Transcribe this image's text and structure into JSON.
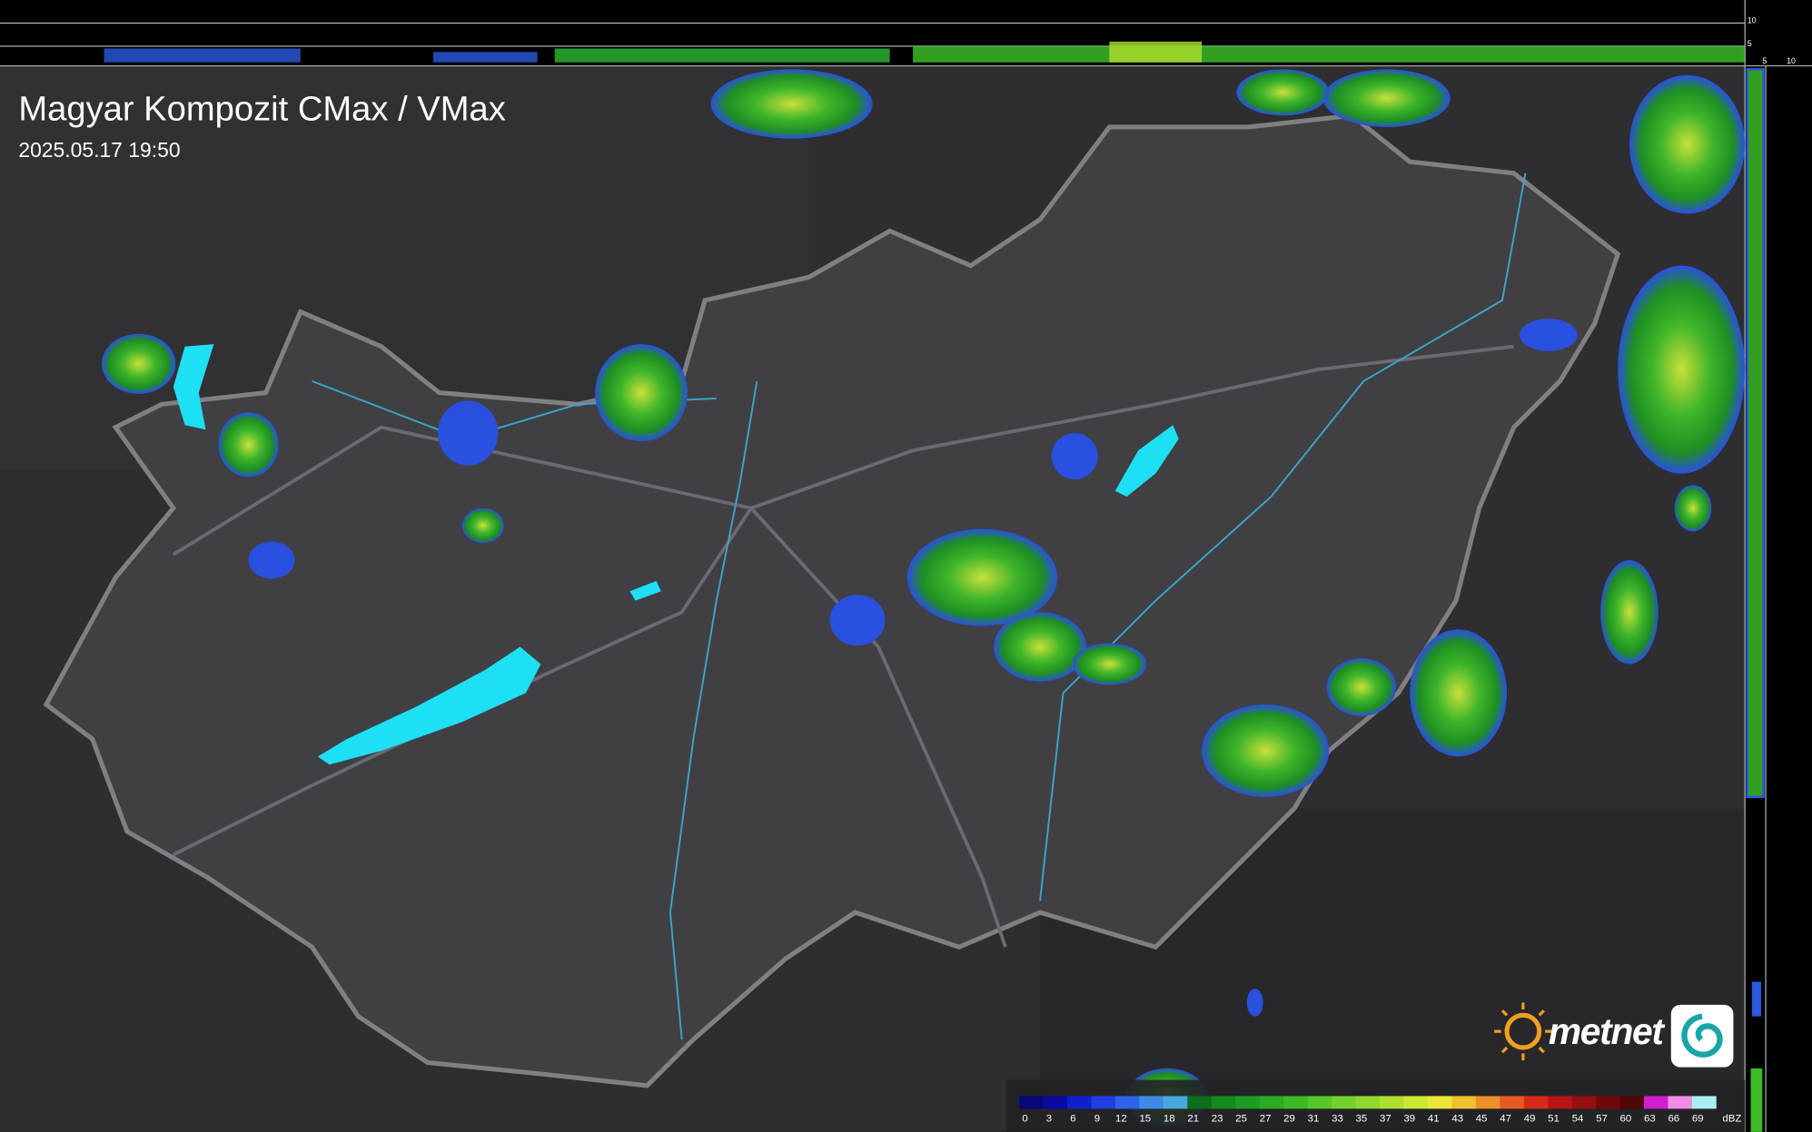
{
  "header": {
    "title": "Magyar Kompozit CMax / VMax",
    "timestamp": "2025.05.17 19:50"
  },
  "top_scale": {
    "labels": [
      "10",
      "5"
    ]
  },
  "right_scale": {
    "labels": [
      "5",
      "10"
    ]
  },
  "logo": {
    "text": "metnet"
  },
  "legend": {
    "labels": [
      "0",
      "3",
      "6",
      "9",
      "12",
      "15",
      "18",
      "21",
      "23",
      "25",
      "27",
      "29",
      "31",
      "33",
      "35",
      "37",
      "39",
      "41",
      "43",
      "45",
      "47",
      "49",
      "51",
      "54",
      "57",
      "60",
      "63",
      "66",
      "69"
    ],
    "unit": "dBZ",
    "colors": [
      "#07077a",
      "#0a0aa0",
      "#1020c8",
      "#1f3fe0",
      "#2d63e8",
      "#3f8ae8",
      "#47a8e0",
      "#0c6e1c",
      "#138a1e",
      "#1c9e22",
      "#2aad24",
      "#3cbb27",
      "#56c72a",
      "#72d12c",
      "#8fd82e",
      "#aee030",
      "#cde833",
      "#ece636",
      "#f0c030",
      "#ef8f2a",
      "#e85a22",
      "#d82a1c",
      "#b81616",
      "#961010",
      "#700a0a",
      "#520606",
      "#d21ed2",
      "#f08ce6",
      "#a8f0f0"
    ]
  }
}
